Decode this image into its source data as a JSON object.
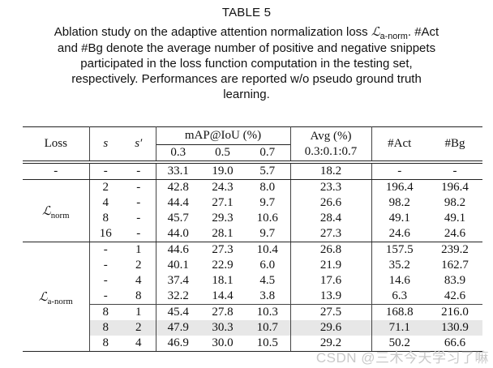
{
  "title": "TABLE 5",
  "caption": {
    "line1_pre": "Ablation study on the adaptive attention normalization loss ",
    "loss_symbol": "ℒ",
    "loss_symbol_sub": "a-norm",
    "line1_post": ". #Act",
    "line2": "and #Bg denote the average number of positive and negative snippets",
    "line3": "participated in the loss function computation in the testing set,",
    "line4": "respectively. Performances are reported w/o pseudo ground truth",
    "line5": "learning."
  },
  "table": {
    "headers": {
      "loss": "Loss",
      "s": "s",
      "s_prime": "s′",
      "map_group": "mAP@IoU (%)",
      "iou_03": "0.3",
      "iou_05": "0.5",
      "iou_07": "0.7",
      "avg_line1": "Avg (%)",
      "avg_line2": "0.3:0.1:0.7",
      "act": "#Act",
      "bg": "#Bg"
    },
    "column_names": [
      "s-value",
      "s-prime-value",
      "map-0.3-value",
      "map-0.5-value",
      "map-0.7-value",
      "avg-value",
      "act-value",
      "bg-value"
    ],
    "groups": [
      {
        "loss_main": "-",
        "loss_sub": "",
        "rows": [
          [
            "-",
            "-",
            "33.1",
            "19.0",
            "5.7",
            "18.2",
            "-",
            "-"
          ]
        ]
      },
      {
        "loss_main": "ℒ",
        "loss_sub": "norm",
        "rows": [
          [
            "2",
            "-",
            "42.8",
            "24.3",
            "8.0",
            "23.3",
            "196.4",
            "196.4"
          ],
          [
            "4",
            "-",
            "44.4",
            "27.1",
            "9.7",
            "26.6",
            "98.2",
            "98.2"
          ],
          [
            "8",
            "-",
            "45.7",
            "29.3",
            "10.6",
            "28.4",
            "49.1",
            "49.1"
          ],
          [
            "16",
            "-",
            "44.0",
            "28.1",
            "9.7",
            "27.3",
            "24.6",
            "24.6"
          ]
        ]
      },
      {
        "loss_main": "ℒ",
        "loss_sub": "a-norm",
        "partial_rule_before_row": 4,
        "highlight_row": 5,
        "rows": [
          [
            "-",
            "1",
            "44.6",
            "27.3",
            "10.4",
            "26.8",
            "157.5",
            "239.2"
          ],
          [
            "-",
            "2",
            "40.1",
            "22.9",
            "6.0",
            "21.9",
            "35.2",
            "162.7"
          ],
          [
            "-",
            "4",
            "37.4",
            "18.1",
            "4.5",
            "17.6",
            "14.6",
            "83.9"
          ],
          [
            "-",
            "8",
            "32.2",
            "14.4",
            "3.8",
            "13.9",
            "6.3",
            "42.6"
          ],
          [
            "8",
            "1",
            "45.4",
            "27.8",
            "10.3",
            "27.5",
            "168.8",
            "216.0"
          ],
          [
            "8",
            "2",
            "47.9",
            "30.3",
            "10.7",
            "29.6",
            "71.1",
            "130.9"
          ],
          [
            "8",
            "4",
            "46.9",
            "30.0",
            "10.5",
            "29.2",
            "50.2",
            "66.6"
          ]
        ]
      }
    ],
    "highlight_color": "#e7e7e7"
  },
  "watermark": "CSDN @三木今天学习了嘛"
}
